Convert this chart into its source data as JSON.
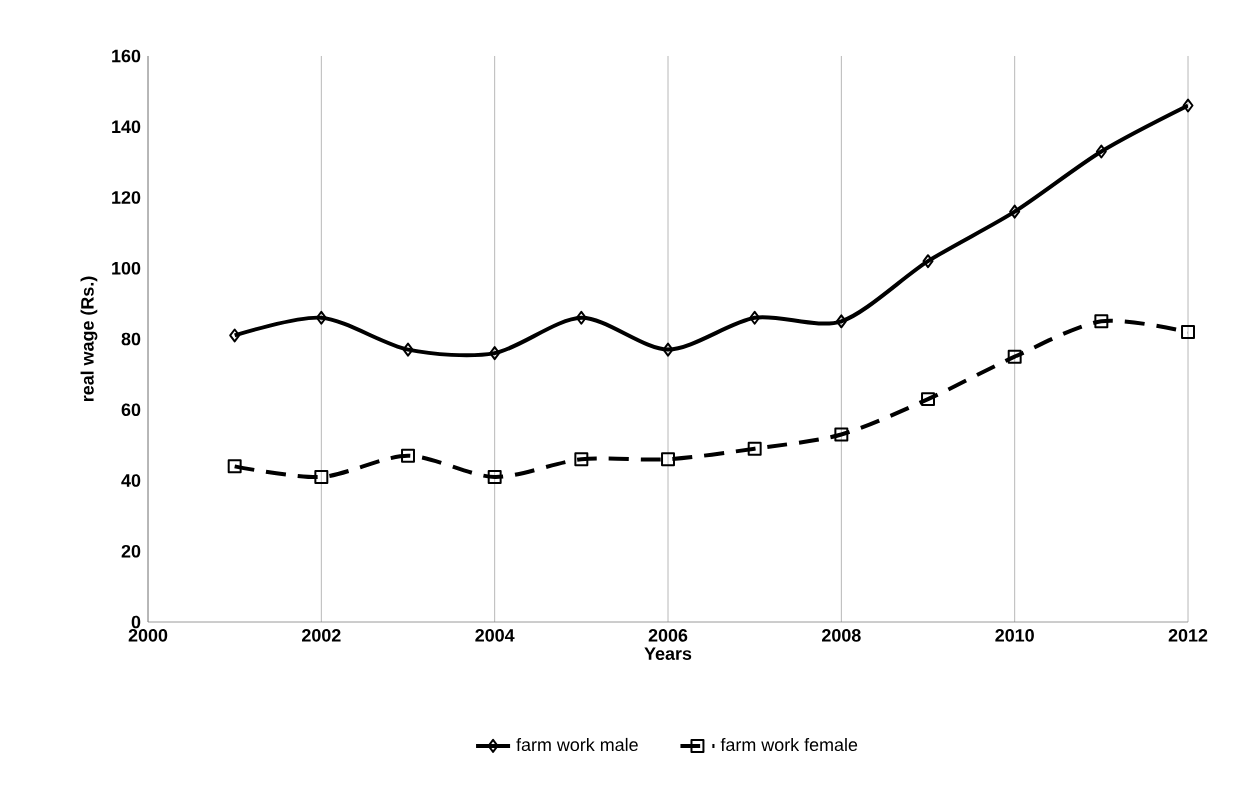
{
  "chart_data": {
    "type": "line",
    "xlabel": "Years",
    "ylabel": "real wage (Rs.)",
    "x": [
      2001,
      2002,
      2003,
      2004,
      2005,
      2006,
      2007,
      2008,
      2009,
      2010,
      2011,
      2012
    ],
    "series": [
      {
        "name": "farm work male",
        "color": "#000000",
        "marker": "diamond",
        "line_style": "solid",
        "values": [
          81,
          86,
          77,
          76,
          86,
          77,
          86,
          85,
          102,
          116,
          133,
          146
        ]
      },
      {
        "name": "farm work female",
        "color": "#000000",
        "marker": "square",
        "line_style": "dashed",
        "values": [
          44,
          41,
          47,
          41,
          46,
          46,
          49,
          53,
          63,
          75,
          85,
          82
        ]
      }
    ],
    "xlim": [
      2000,
      2012
    ],
    "xticks": [
      2000,
      2002,
      2004,
      2006,
      2008,
      2010,
      2012
    ],
    "ylim": [
      0,
      160
    ],
    "yticks": [
      0,
      20,
      40,
      60,
      80,
      100,
      120,
      140,
      160
    ],
    "grid": "x",
    "legend": "bottom"
  }
}
